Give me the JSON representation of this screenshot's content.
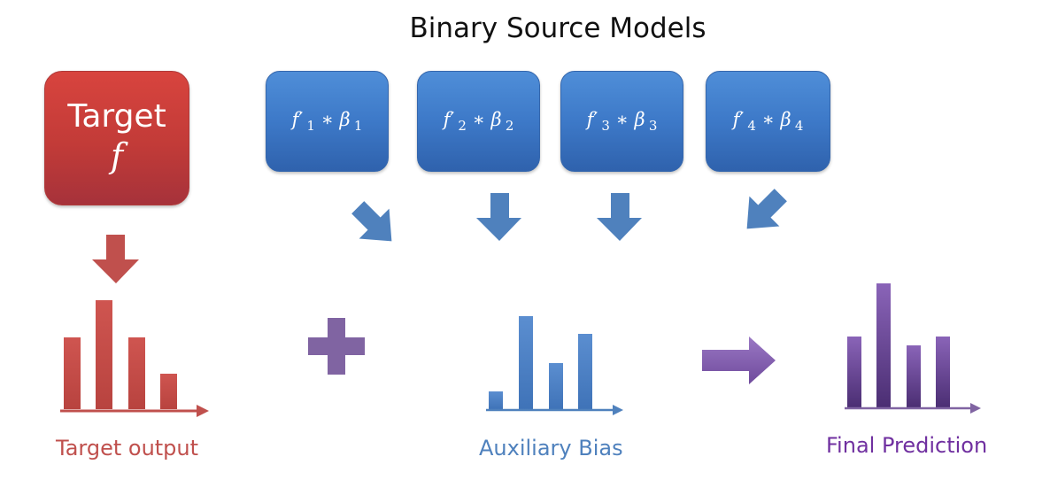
{
  "title": "Binary Source Models",
  "target": {
    "line1": "Target",
    "line2": "f"
  },
  "sources": [
    {
      "prime": "f′",
      "index": "1",
      "op": " ∗ β",
      "sub": "1"
    },
    {
      "prime": "f′",
      "index": "2",
      "op": " ∗ β",
      "sub": "2"
    },
    {
      "prime": "f′",
      "index": "3",
      "op": " ∗ β",
      "sub": "3"
    },
    {
      "prime": "f′",
      "index": "4",
      "op": " ∗ β",
      "sub": "4"
    }
  ],
  "labels": {
    "target_output": "Target output",
    "auxiliary_bias": "Auxiliary Bias",
    "final_prediction": "Final Prediction"
  },
  "colors": {
    "red": "#c0504d",
    "blue": "#4f81bd",
    "purple": "#8064a2"
  }
}
